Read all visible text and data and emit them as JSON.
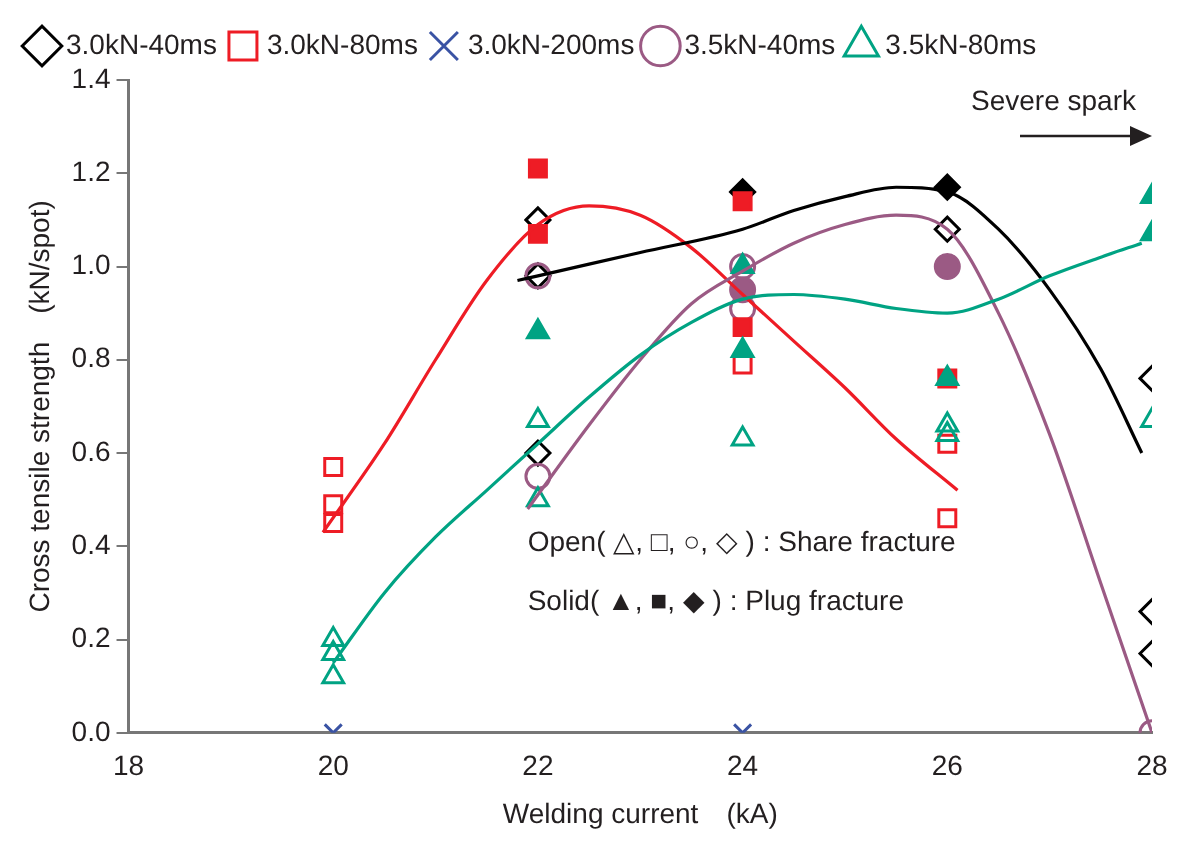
{
  "chart_data": {
    "type": "scatter",
    "xlabel": "Welding current　(kA)",
    "ylabel": "Cross tensile strength　(kN/spot)",
    "xlim": [
      18,
      28
    ],
    "xticks": [
      18,
      20,
      22,
      24,
      26,
      28
    ],
    "ylim": [
      0,
      1.4
    ],
    "yticks": [
      {
        "value": 0,
        "label": "0.0"
      },
      {
        "value": 0.2,
        "label": "0.2"
      },
      {
        "value": 0.4,
        "label": "0.4"
      },
      {
        "value": 0.6,
        "label": "0.6"
      },
      {
        "value": 0.8,
        "label": "0.8"
      },
      {
        "value": 1,
        "label": "1.0"
      },
      {
        "value": 1.2,
        "label": "1.2"
      },
      {
        "value": 1.4,
        "label": "1.4"
      }
    ],
    "grid": false,
    "legend": "top left",
    "annotations": [
      "Severe spark",
      "Open( △, □, ○, ◇ ) : Share fracture",
      "Solid( ▲, ■, ◆ ) : Plug fracture"
    ],
    "series": [
      {
        "name": "3.0kN-40ms",
        "color": "#000000",
        "marker": "diamond",
        "x": [
          22,
          22,
          22,
          26,
          28,
          28,
          28
        ],
        "values": [
          1.1,
          0.98,
          0.6,
          1.08,
          0.76,
          0.26,
          0.17
        ]
      },
      {
        "name": "3.0kN-80ms",
        "color": "#ee1c25",
        "marker": "square",
        "x": [
          20,
          20,
          20,
          24,
          26,
          26
        ],
        "values": [
          0.57,
          0.49,
          0.45,
          0.79,
          0.62,
          0.46
        ]
      },
      {
        "name": "3.0kN-200ms",
        "color": "#3a53a4",
        "marker": "cross",
        "x": [
          20,
          24
        ],
        "values": [
          0,
          0
        ]
      },
      {
        "name": "3.5kN-40ms",
        "color": "#9b5a84",
        "marker": "circle",
        "x": [
          22,
          22,
          24,
          24,
          28
        ],
        "values": [
          0.98,
          0.55,
          1.0,
          0.91,
          0
        ]
      },
      {
        "name": "3.5kN-80ms",
        "color": "#00a383",
        "marker": "triangle",
        "x": [
          20,
          20,
          20,
          22,
          22,
          24,
          26,
          26,
          28
        ],
        "values": [
          0.2,
          0.17,
          0.12,
          0.67,
          0.5,
          0.63,
          0.66,
          0.64,
          0.67
        ]
      },
      {
        "color": "#000000",
        "marker": "diamond",
        "x": [
          24,
          26
        ],
        "values": [
          1.16,
          1.17
        ]
      },
      {
        "color": "#ee1c25",
        "marker": "square",
        "x": [
          22,
          22,
          24,
          24,
          26
        ],
        "values": [
          1.21,
          1.07,
          1.14,
          0.87,
          0.76
        ]
      },
      {
        "color": "#9b5a84",
        "marker": "circle",
        "x": [
          24,
          26
        ],
        "values": [
          0.95,
          1.0
        ]
      },
      {
        "color": "#00a383",
        "marker": "triangle",
        "x": [
          22,
          24,
          24,
          26,
          28,
          28
        ],
        "values": [
          0.86,
          1.0,
          0.82,
          0.76,
          1.15,
          1.07
        ]
      },
      {
        "type": "line",
        "color": "#ee1c25",
        "marker": "none",
        "x": [
          19.9,
          20.5,
          21,
          21.5,
          22,
          22.5,
          23,
          23.5,
          24,
          24.5,
          25,
          25.5,
          26.1
        ],
        "values": [
          0.43,
          0.62,
          0.8,
          0.97,
          1.09,
          1.13,
          1.11,
          1.04,
          0.94,
          0.84,
          0.74,
          0.63,
          0.52
        ]
      },
      {
        "type": "line",
        "color": "#000000",
        "marker": "none",
        "x": [
          21.8,
          22,
          23,
          24,
          24.5,
          25,
          25.5,
          26,
          26.5,
          27,
          27.5,
          27.9
        ],
        "values": [
          0.97,
          0.98,
          1.03,
          1.08,
          1.12,
          1.15,
          1.17,
          1.16,
          1.08,
          0.95,
          0.78,
          0.6
        ]
      },
      {
        "type": "line",
        "color": "#9b5a84",
        "marker": "none",
        "x": [
          21.9,
          22.5,
          23,
          23.5,
          24,
          24.5,
          25,
          25.5,
          26,
          26.5,
          27,
          27.5,
          28
        ],
        "values": [
          0.48,
          0.66,
          0.8,
          0.92,
          0.99,
          1.05,
          1.09,
          1.11,
          1.08,
          0.9,
          0.64,
          0.32,
          0
        ]
      },
      {
        "type": "line",
        "color": "#00a383",
        "marker": "none",
        "x": [
          20,
          20.5,
          21,
          21.5,
          22,
          22.5,
          23,
          23.5,
          24,
          24.5,
          25,
          25.5,
          26,
          26.5,
          27,
          27.5,
          27.9
        ],
        "values": [
          0.15,
          0.3,
          0.42,
          0.52,
          0.62,
          0.72,
          0.81,
          0.88,
          0.93,
          0.94,
          0.93,
          0.91,
          0.9,
          0.93,
          0.98,
          1.02,
          1.05
        ]
      }
    ]
  }
}
